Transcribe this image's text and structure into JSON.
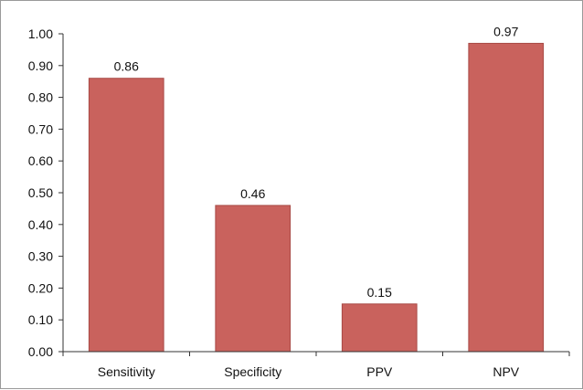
{
  "chart_data": {
    "type": "bar",
    "categories": [
      "Sensitivity",
      "Specificity",
      "PPV",
      "NPV"
    ],
    "values": [
      0.86,
      0.46,
      0.15,
      0.97
    ],
    "data_labels": [
      "0.86",
      "0.46",
      "0.15",
      "0.97"
    ],
    "title": "",
    "xlabel": "",
    "ylabel": "",
    "ylim": [
      0,
      1
    ],
    "yticks": [
      0.0,
      0.1,
      0.2,
      0.3,
      0.4,
      0.5,
      0.6,
      0.7,
      0.8,
      0.9,
      1.0
    ],
    "ytick_labels": [
      "0.00",
      "0.10",
      "0.20",
      "0.30",
      "0.40",
      "0.50",
      "0.60",
      "0.70",
      "0.80",
      "0.90",
      "1.00"
    ],
    "grid": false,
    "legend": "none",
    "bar_color": "#c9625d",
    "bar_edge_color": "#a84a45",
    "axis_color": "#333333"
  }
}
